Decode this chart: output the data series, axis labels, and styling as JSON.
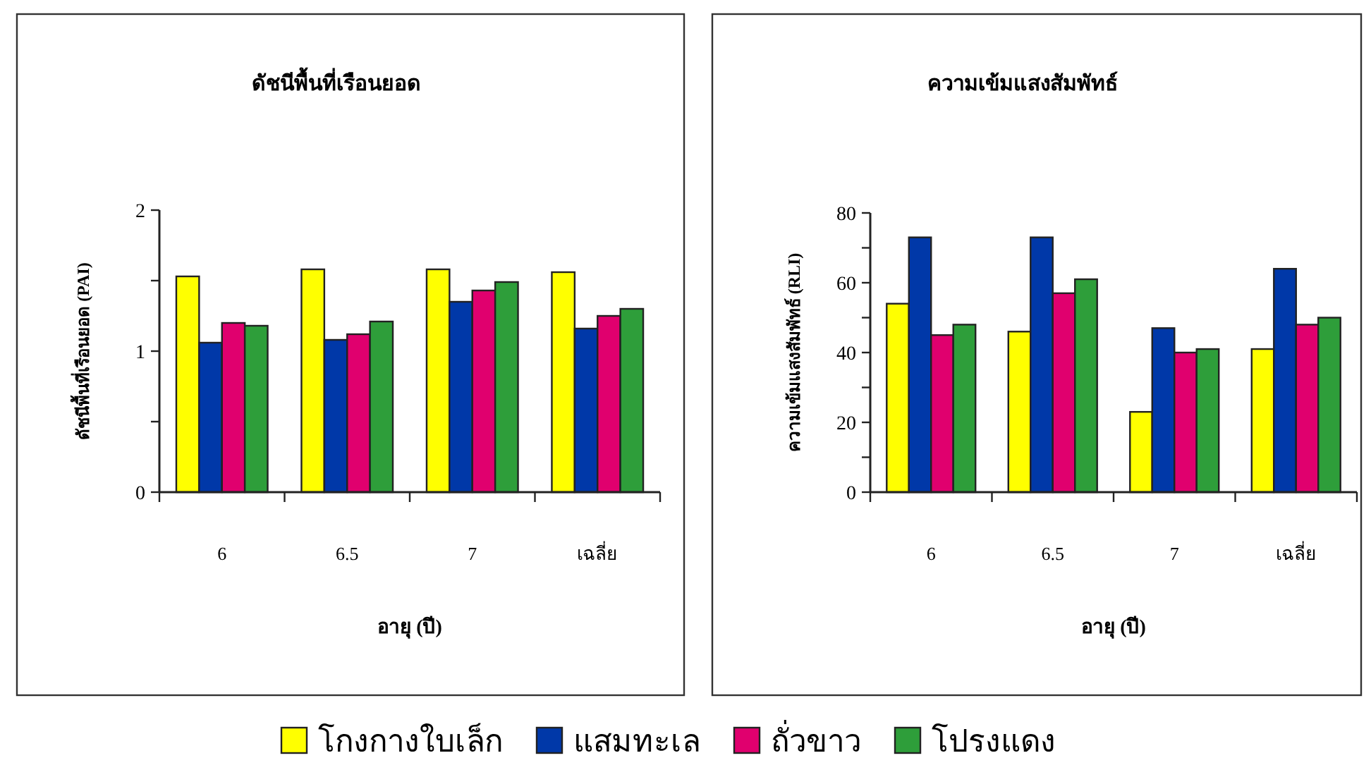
{
  "chart_data": [
    {
      "type": "bar",
      "title": "ดัชนีพื้นที่เรือนยอด",
      "xlabel": "อายุ (ปี)",
      "ylabel": "ดัชนีพื้นที่เรือนยอด (PAI)",
      "categories": [
        "6",
        "6.5",
        "7",
        "เฉลี่ย"
      ],
      "ylim": [
        0,
        2
      ],
      "yticks": [
        0,
        {
          "value": 0.5,
          "label": null
        },
        1,
        {
          "value": 1.5,
          "label": null
        },
        2
      ],
      "grid": false,
      "legend": "bottom",
      "series": [
        {
          "name": "โกงกางใบเล็ก",
          "color": "#ffff00",
          "values": [
            1.53,
            1.58,
            1.58,
            1.56
          ]
        },
        {
          "name": "แสมทะเล",
          "color": "#0038a8",
          "values": [
            1.06,
            1.08,
            1.35,
            1.16
          ]
        },
        {
          "name": "ถั่วขาว",
          "color": "#e0006e",
          "values": [
            1.2,
            1.12,
            1.43,
            1.25
          ]
        },
        {
          "name": "โปรงแดง",
          "color": "#2e9e3a",
          "values": [
            1.18,
            1.21,
            1.49,
            1.3
          ]
        }
      ]
    },
    {
      "type": "bar",
      "title": "ความเข้มแสงสัมพัทธ์",
      "xlabel": "อายุ (ปี)",
      "ylabel": "ความเข้มแสงสัมพัทธ์ (RLI)",
      "categories": [
        "6",
        "6.5",
        "7",
        "เฉลี่ย"
      ],
      "ylim": [
        0,
        80
      ],
      "yticks": [
        0,
        {
          "value": 10,
          "label": null
        },
        20,
        {
          "value": 30,
          "label": null
        },
        40,
        {
          "value": 50,
          "label": null
        },
        60,
        {
          "value": 70,
          "label": null
        },
        80
      ],
      "grid": false,
      "series": [
        {
          "color": "#ffff00",
          "values": [
            54,
            46,
            23,
            41
          ]
        },
        {
          "color": "#0038a8",
          "values": [
            73,
            73,
            47,
            64
          ]
        },
        {
          "color": "#e0006e",
          "values": [
            45,
            57,
            40,
            48
          ]
        },
        {
          "color": "#2e9e3a",
          "values": [
            48,
            61,
            41,
            50
          ]
        }
      ]
    }
  ]
}
